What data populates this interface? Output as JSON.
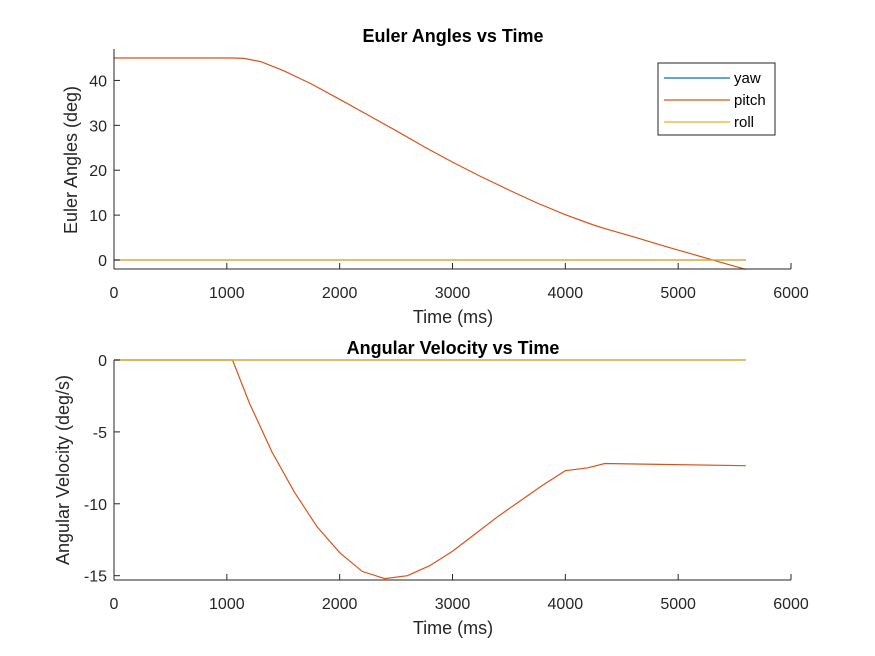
{
  "chart_data": [
    {
      "type": "line",
      "title": "Euler Angles vs Time",
      "xlabel": "Time (ms)",
      "ylabel": "Euler Angles (deg)",
      "xlim": [
        0,
        6000
      ],
      "ylim": [
        -2,
        47
      ],
      "xticks": [
        0,
        1000,
        2000,
        3000,
        4000,
        5000,
        6000
      ],
      "yticks": [
        0,
        10,
        20,
        30,
        40
      ],
      "grid": false,
      "legend_placement": "top-right",
      "series": [
        {
          "name": "yaw",
          "color": "#0072BD",
          "x": [
            0,
            5600
          ],
          "y": [
            0,
            0
          ]
        },
        {
          "name": "pitch",
          "color": "#D95319",
          "x": [
            0,
            1050,
            1150,
            1300,
            1500,
            1750,
            2000,
            2250,
            2500,
            2750,
            3000,
            3250,
            3500,
            3750,
            4000,
            4250,
            4350,
            4600,
            4850,
            5100,
            5350,
            5600
          ],
          "y": [
            45,
            45,
            44.9,
            44.2,
            42.2,
            39.2,
            35.8,
            32.3,
            28.8,
            25.2,
            21.8,
            18.6,
            15.6,
            12.7,
            10.1,
            7.8,
            7.0,
            5.2,
            3.3,
            1.5,
            -0.3,
            -2.1
          ]
        },
        {
          "name": "roll",
          "color": "#EDB120",
          "x": [
            0,
            5600
          ],
          "y": [
            0,
            0
          ]
        }
      ]
    },
    {
      "type": "line",
      "title": "Angular Velocity vs Time",
      "xlabel": "Time (ms)",
      "ylabel": "Angular Velocity (deg/s)",
      "xlim": [
        0,
        6000
      ],
      "ylim": [
        -15.3,
        0
      ],
      "xticks": [
        0,
        1000,
        2000,
        3000,
        4000,
        5000,
        6000
      ],
      "yticks": [
        -15,
        -10,
        -5,
        0
      ],
      "grid": false,
      "series": [
        {
          "name": "yaw",
          "color": "#0072BD",
          "x": [
            0,
            5600
          ],
          "y": [
            0,
            0
          ]
        },
        {
          "name": "pitch",
          "color": "#D95319",
          "x": [
            0,
            1050,
            1200,
            1400,
            1600,
            1800,
            2000,
            2200,
            2400,
            2600,
            2800,
            3000,
            3200,
            3400,
            3600,
            3800,
            4000,
            4200,
            4350,
            5600
          ],
          "y": [
            0,
            0,
            -3.0,
            -6.4,
            -9.2,
            -11.6,
            -13.4,
            -14.7,
            -15.2,
            -15.0,
            -14.3,
            -13.3,
            -12.1,
            -10.9,
            -9.8,
            -8.7,
            -7.7,
            -7.5,
            -7.2,
            -7.35
          ]
        },
        {
          "name": "roll",
          "color": "#EDB120",
          "x": [
            0,
            5600
          ],
          "y": [
            0,
            0
          ]
        }
      ]
    }
  ]
}
